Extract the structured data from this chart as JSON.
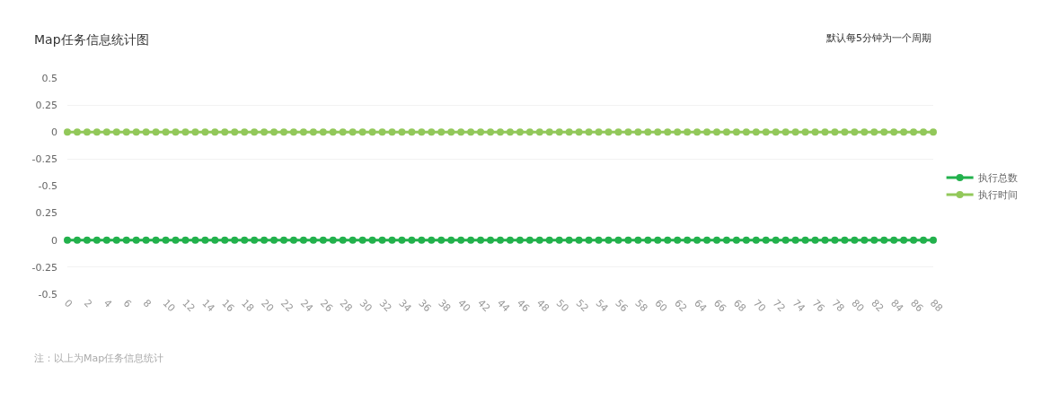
{
  "chart_data": [
    {
      "type": "line",
      "title": "Map任务信息统计图",
      "annotations": [
        "默认每5分钟为一个周期"
      ],
      "tick_labels": "y",
      "grid": "y",
      "legend": "right",
      "marker": "circle",
      "line_style": "solid",
      "xlim": [
        0,
        88
      ],
      "ylim": [
        -0.5,
        0.5
      ],
      "yticks": [
        -0.5,
        -0.25,
        0,
        0.25,
        0.5
      ],
      "x": [
        0,
        1,
        2,
        3,
        4,
        5,
        6,
        7,
        8,
        9,
        10,
        11,
        12,
        13,
        14,
        15,
        16,
        17,
        18,
        19,
        20,
        21,
        22,
        23,
        24,
        25,
        26,
        27,
        28,
        29,
        30,
        31,
        32,
        33,
        34,
        35,
        36,
        37,
        38,
        39,
        40,
        41,
        42,
        43,
        44,
        45,
        46,
        47,
        48,
        49,
        50,
        51,
        52,
        53,
        54,
        55,
        56,
        57,
        58,
        59,
        60,
        61,
        62,
        63,
        64,
        65,
        66,
        67,
        68,
        69,
        70,
        71,
        72,
        73,
        74,
        75,
        76,
        77,
        78,
        79,
        80,
        81,
        82,
        83,
        84,
        85,
        86,
        87,
        88
      ],
      "series": [
        {
          "name": "执行时间",
          "color": "#92c85a",
          "values": [
            0,
            0,
            0,
            0,
            0,
            0,
            0,
            0,
            0,
            0,
            0,
            0,
            0,
            0,
            0,
            0,
            0,
            0,
            0,
            0,
            0,
            0,
            0,
            0,
            0,
            0,
            0,
            0,
            0,
            0,
            0,
            0,
            0,
            0,
            0,
            0,
            0,
            0,
            0,
            0,
            0,
            0,
            0,
            0,
            0,
            0,
            0,
            0,
            0,
            0,
            0,
            0,
            0,
            0,
            0,
            0,
            0,
            0,
            0,
            0,
            0,
            0,
            0,
            0,
            0,
            0,
            0,
            0,
            0,
            0,
            0,
            0,
            0,
            0,
            0,
            0,
            0,
            0,
            0,
            0,
            0,
            0,
            0,
            0,
            0,
            0,
            0,
            0,
            0
          ]
        }
      ]
    },
    {
      "type": "line",
      "annotations": [
        "注：以上为Map任务信息统计"
      ],
      "grid": "y",
      "legend": "right",
      "marker": "circle",
      "line_style": "solid",
      "xlim": [
        0,
        88
      ],
      "ylim": [
        -0.5,
        0.25
      ],
      "yticks": [
        -0.5,
        -0.25,
        0,
        0.25
      ],
      "xticks": [
        0,
        2,
        4,
        6,
        8,
        10,
        12,
        14,
        16,
        18,
        20,
        22,
        24,
        26,
        28,
        30,
        32,
        34,
        36,
        38,
        40,
        42,
        44,
        46,
        48,
        50,
        52,
        54,
        56,
        58,
        60,
        62,
        64,
        66,
        68,
        70,
        72,
        74,
        76,
        78,
        80,
        82,
        84,
        86,
        88
      ],
      "x": [
        0,
        1,
        2,
        3,
        4,
        5,
        6,
        7,
        8,
        9,
        10,
        11,
        12,
        13,
        14,
        15,
        16,
        17,
        18,
        19,
        20,
        21,
        22,
        23,
        24,
        25,
        26,
        27,
        28,
        29,
        30,
        31,
        32,
        33,
        34,
        35,
        36,
        37,
        38,
        39,
        40,
        41,
        42,
        43,
        44,
        45,
        46,
        47,
        48,
        49,
        50,
        51,
        52,
        53,
        54,
        55,
        56,
        57,
        58,
        59,
        60,
        61,
        62,
        63,
        64,
        65,
        66,
        67,
        68,
        69,
        70,
        71,
        72,
        73,
        74,
        75,
        76,
        77,
        78,
        79,
        80,
        81,
        82,
        83,
        84,
        85,
        86,
        87,
        88
      ],
      "series": [
        {
          "name": "执行总数",
          "color": "#22b14c",
          "values": [
            0,
            0,
            0,
            0,
            0,
            0,
            0,
            0,
            0,
            0,
            0,
            0,
            0,
            0,
            0,
            0,
            0,
            0,
            0,
            0,
            0,
            0,
            0,
            0,
            0,
            0,
            0,
            0,
            0,
            0,
            0,
            0,
            0,
            0,
            0,
            0,
            0,
            0,
            0,
            0,
            0,
            0,
            0,
            0,
            0,
            0,
            0,
            0,
            0,
            0,
            0,
            0,
            0,
            0,
            0,
            0,
            0,
            0,
            0,
            0,
            0,
            0,
            0,
            0,
            0,
            0,
            0,
            0,
            0,
            0,
            0,
            0,
            0,
            0,
            0,
            0,
            0,
            0,
            0,
            0,
            0,
            0,
            0,
            0,
            0,
            0,
            0,
            0,
            0
          ]
        }
      ]
    }
  ]
}
